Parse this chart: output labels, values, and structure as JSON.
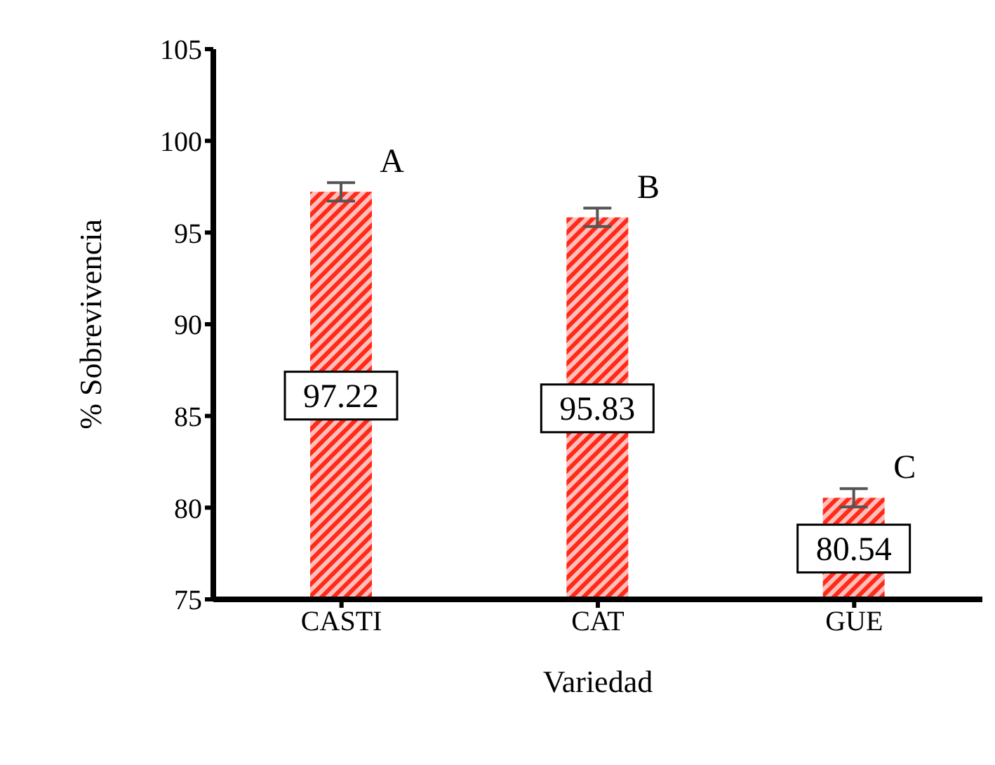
{
  "chart_data": {
    "type": "bar",
    "xlabel": "Variedad",
    "ylabel": "% Sobrevivencia",
    "categories": [
      "CASTI",
      "CAT",
      "GUE"
    ],
    "values": [
      97.22,
      95.83,
      80.54
    ],
    "errors": [
      0.5,
      0.5,
      0.5
    ],
    "color": "#ff2a1a",
    "data_labels": true,
    "ylim": [
      75,
      105
    ],
    "yticks": [
      75,
      80,
      85,
      90,
      95,
      100,
      105
    ],
    "grid": false,
    "legend": false,
    "annotations": [
      "A",
      "B",
      "C"
    ]
  }
}
